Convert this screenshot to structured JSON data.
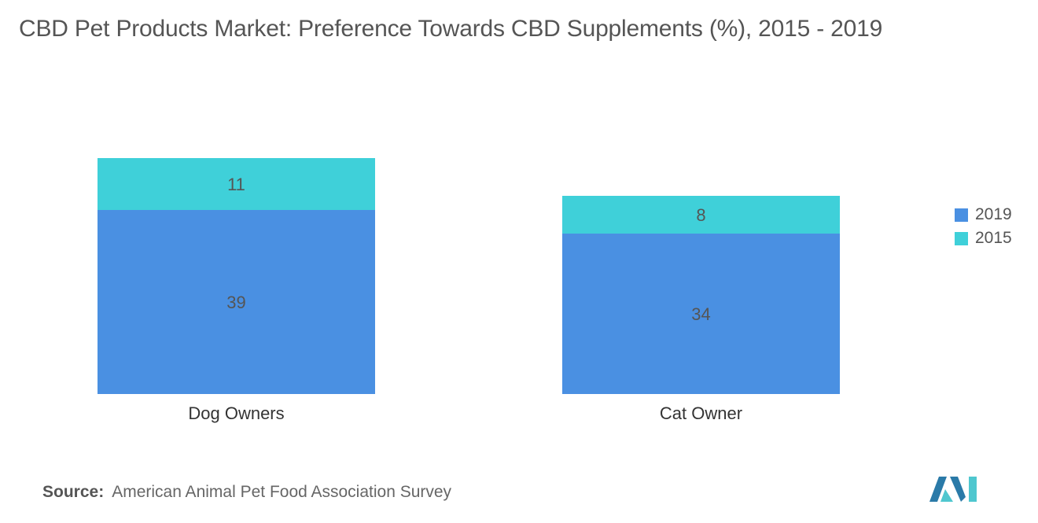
{
  "title": "CBD Pet Products Market: Preference Towards CBD Supplements (%), 2015 - 2019",
  "source": {
    "label": "Source:",
    "text": "American Animal Pet Food Association Survey"
  },
  "colors": {
    "series_2019": "#4a90e2",
    "series_2015": "#3fd0d9",
    "text": "#555555",
    "logo_dark": "#2a7aa8",
    "logo_light": "#4fc7cf"
  },
  "logo": {
    "icon": "mordor-intelligence-logo-icon"
  },
  "chart_data": {
    "type": "bar",
    "stacked": true,
    "categories": [
      "Dog Owners",
      "Cat Owner"
    ],
    "series": [
      {
        "name": "2019",
        "values": [
          39,
          34
        ],
        "color": "#4a90e2"
      },
      {
        "name": "2015",
        "values": [
          11,
          8
        ],
        "color": "#3fd0d9"
      }
    ],
    "legend": [
      "2019",
      "2015"
    ],
    "legend_position": "right",
    "grid": false,
    "ylim": [
      0,
      50
    ]
  }
}
